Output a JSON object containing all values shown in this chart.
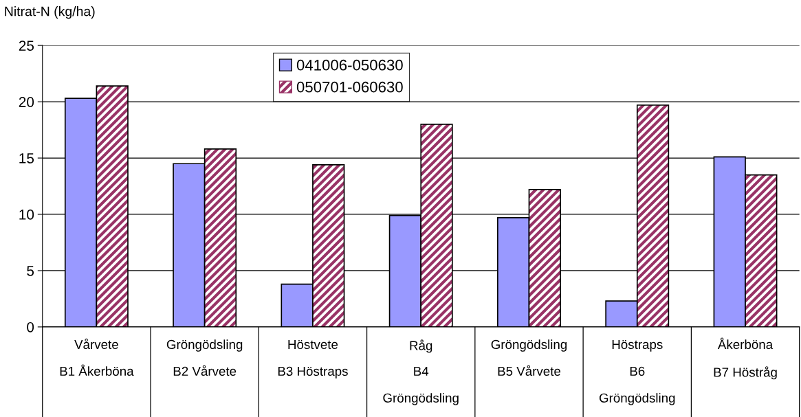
{
  "chart_data": {
    "type": "bar",
    "ylabel": "Nitrat-N (kg/ha)",
    "categories": [
      "Vårvete\nB1 Åkerböna",
      "Gröngödsling\nB2 Vårvete",
      "Höstvete\nB3 Höstraps",
      "Råg\nB4\nGröngödsling",
      "Gröngödsling\nB5 Vårvete",
      "Höstraps\nB6\nGröngödsling",
      "Åkerböna\nB7 Höstråg"
    ],
    "series": [
      {
        "name": "041006-050630",
        "color": "#9999ff",
        "values": [
          20.3,
          14.5,
          3.8,
          9.9,
          9.7,
          2.3,
          15.1
        ]
      },
      {
        "name": "050701-060630",
        "color": "#993366",
        "values": [
          21.4,
          15.8,
          14.4,
          18.0,
          12.2,
          19.7,
          13.5
        ]
      }
    ],
    "ylim": [
      0,
      25
    ],
    "yticks": [
      0,
      5,
      10,
      15,
      20,
      25
    ],
    "grid": "y",
    "legend": "top"
  }
}
